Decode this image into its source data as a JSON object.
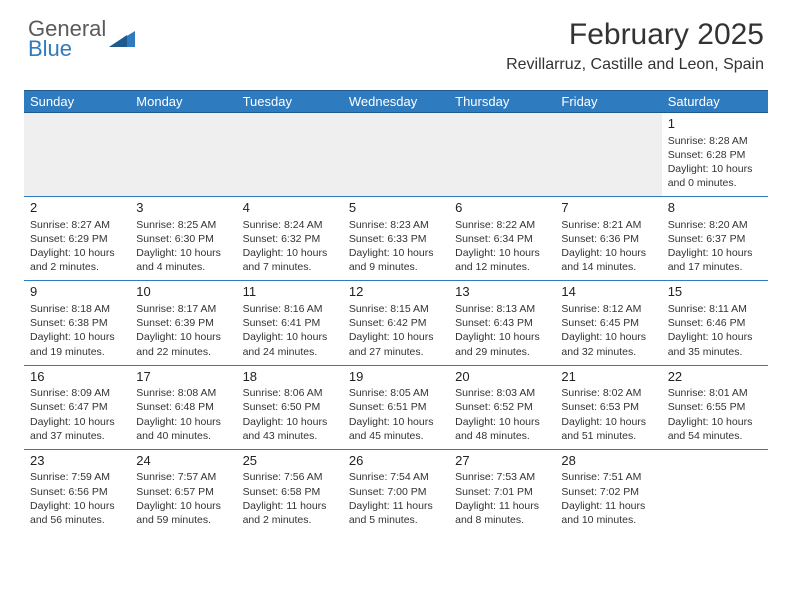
{
  "logo": {
    "line1": "General",
    "line2": "Blue",
    "triangle_color": "#2f7bbf"
  },
  "title": "February 2025",
  "subtitle": "Revillarruz, Castille and Leon, Spain",
  "colors": {
    "header_bg": "#2f7bbf",
    "header_text": "#ffffff",
    "grid_border": "#2f7bbf",
    "empty_bg": "#efefef",
    "body_text": "#333333"
  },
  "weekdays": [
    "Sunday",
    "Monday",
    "Tuesday",
    "Wednesday",
    "Thursday",
    "Friday",
    "Saturday"
  ],
  "weeks": [
    [
      null,
      null,
      null,
      null,
      null,
      null,
      {
        "day": "1",
        "sunrise": "Sunrise: 8:28 AM",
        "sunset": "Sunset: 6:28 PM",
        "daylight1": "Daylight: 10 hours",
        "daylight2": "and 0 minutes."
      }
    ],
    [
      {
        "day": "2",
        "sunrise": "Sunrise: 8:27 AM",
        "sunset": "Sunset: 6:29 PM",
        "daylight1": "Daylight: 10 hours",
        "daylight2": "and 2 minutes."
      },
      {
        "day": "3",
        "sunrise": "Sunrise: 8:25 AM",
        "sunset": "Sunset: 6:30 PM",
        "daylight1": "Daylight: 10 hours",
        "daylight2": "and 4 minutes."
      },
      {
        "day": "4",
        "sunrise": "Sunrise: 8:24 AM",
        "sunset": "Sunset: 6:32 PM",
        "daylight1": "Daylight: 10 hours",
        "daylight2": "and 7 minutes."
      },
      {
        "day": "5",
        "sunrise": "Sunrise: 8:23 AM",
        "sunset": "Sunset: 6:33 PM",
        "daylight1": "Daylight: 10 hours",
        "daylight2": "and 9 minutes."
      },
      {
        "day": "6",
        "sunrise": "Sunrise: 8:22 AM",
        "sunset": "Sunset: 6:34 PM",
        "daylight1": "Daylight: 10 hours",
        "daylight2": "and 12 minutes."
      },
      {
        "day": "7",
        "sunrise": "Sunrise: 8:21 AM",
        "sunset": "Sunset: 6:36 PM",
        "daylight1": "Daylight: 10 hours",
        "daylight2": "and 14 minutes."
      },
      {
        "day": "8",
        "sunrise": "Sunrise: 8:20 AM",
        "sunset": "Sunset: 6:37 PM",
        "daylight1": "Daylight: 10 hours",
        "daylight2": "and 17 minutes."
      }
    ],
    [
      {
        "day": "9",
        "sunrise": "Sunrise: 8:18 AM",
        "sunset": "Sunset: 6:38 PM",
        "daylight1": "Daylight: 10 hours",
        "daylight2": "and 19 minutes."
      },
      {
        "day": "10",
        "sunrise": "Sunrise: 8:17 AM",
        "sunset": "Sunset: 6:39 PM",
        "daylight1": "Daylight: 10 hours",
        "daylight2": "and 22 minutes."
      },
      {
        "day": "11",
        "sunrise": "Sunrise: 8:16 AM",
        "sunset": "Sunset: 6:41 PM",
        "daylight1": "Daylight: 10 hours",
        "daylight2": "and 24 minutes."
      },
      {
        "day": "12",
        "sunrise": "Sunrise: 8:15 AM",
        "sunset": "Sunset: 6:42 PM",
        "daylight1": "Daylight: 10 hours",
        "daylight2": "and 27 minutes."
      },
      {
        "day": "13",
        "sunrise": "Sunrise: 8:13 AM",
        "sunset": "Sunset: 6:43 PM",
        "daylight1": "Daylight: 10 hours",
        "daylight2": "and 29 minutes."
      },
      {
        "day": "14",
        "sunrise": "Sunrise: 8:12 AM",
        "sunset": "Sunset: 6:45 PM",
        "daylight1": "Daylight: 10 hours",
        "daylight2": "and 32 minutes."
      },
      {
        "day": "15",
        "sunrise": "Sunrise: 8:11 AM",
        "sunset": "Sunset: 6:46 PM",
        "daylight1": "Daylight: 10 hours",
        "daylight2": "and 35 minutes."
      }
    ],
    [
      {
        "day": "16",
        "sunrise": "Sunrise: 8:09 AM",
        "sunset": "Sunset: 6:47 PM",
        "daylight1": "Daylight: 10 hours",
        "daylight2": "and 37 minutes."
      },
      {
        "day": "17",
        "sunrise": "Sunrise: 8:08 AM",
        "sunset": "Sunset: 6:48 PM",
        "daylight1": "Daylight: 10 hours",
        "daylight2": "and 40 minutes."
      },
      {
        "day": "18",
        "sunrise": "Sunrise: 8:06 AM",
        "sunset": "Sunset: 6:50 PM",
        "daylight1": "Daylight: 10 hours",
        "daylight2": "and 43 minutes."
      },
      {
        "day": "19",
        "sunrise": "Sunrise: 8:05 AM",
        "sunset": "Sunset: 6:51 PM",
        "daylight1": "Daylight: 10 hours",
        "daylight2": "and 45 minutes."
      },
      {
        "day": "20",
        "sunrise": "Sunrise: 8:03 AM",
        "sunset": "Sunset: 6:52 PM",
        "daylight1": "Daylight: 10 hours",
        "daylight2": "and 48 minutes."
      },
      {
        "day": "21",
        "sunrise": "Sunrise: 8:02 AM",
        "sunset": "Sunset: 6:53 PM",
        "daylight1": "Daylight: 10 hours",
        "daylight2": "and 51 minutes."
      },
      {
        "day": "22",
        "sunrise": "Sunrise: 8:01 AM",
        "sunset": "Sunset: 6:55 PM",
        "daylight1": "Daylight: 10 hours",
        "daylight2": "and 54 minutes."
      }
    ],
    [
      {
        "day": "23",
        "sunrise": "Sunrise: 7:59 AM",
        "sunset": "Sunset: 6:56 PM",
        "daylight1": "Daylight: 10 hours",
        "daylight2": "and 56 minutes."
      },
      {
        "day": "24",
        "sunrise": "Sunrise: 7:57 AM",
        "sunset": "Sunset: 6:57 PM",
        "daylight1": "Daylight: 10 hours",
        "daylight2": "and 59 minutes."
      },
      {
        "day": "25",
        "sunrise": "Sunrise: 7:56 AM",
        "sunset": "Sunset: 6:58 PM",
        "daylight1": "Daylight: 11 hours",
        "daylight2": "and 2 minutes."
      },
      {
        "day": "26",
        "sunrise": "Sunrise: 7:54 AM",
        "sunset": "Sunset: 7:00 PM",
        "daylight1": "Daylight: 11 hours",
        "daylight2": "and 5 minutes."
      },
      {
        "day": "27",
        "sunrise": "Sunrise: 7:53 AM",
        "sunset": "Sunset: 7:01 PM",
        "daylight1": "Daylight: 11 hours",
        "daylight2": "and 8 minutes."
      },
      {
        "day": "28",
        "sunrise": "Sunrise: 7:51 AM",
        "sunset": "Sunset: 7:02 PM",
        "daylight1": "Daylight: 11 hours",
        "daylight2": "and 10 minutes."
      },
      null
    ]
  ]
}
